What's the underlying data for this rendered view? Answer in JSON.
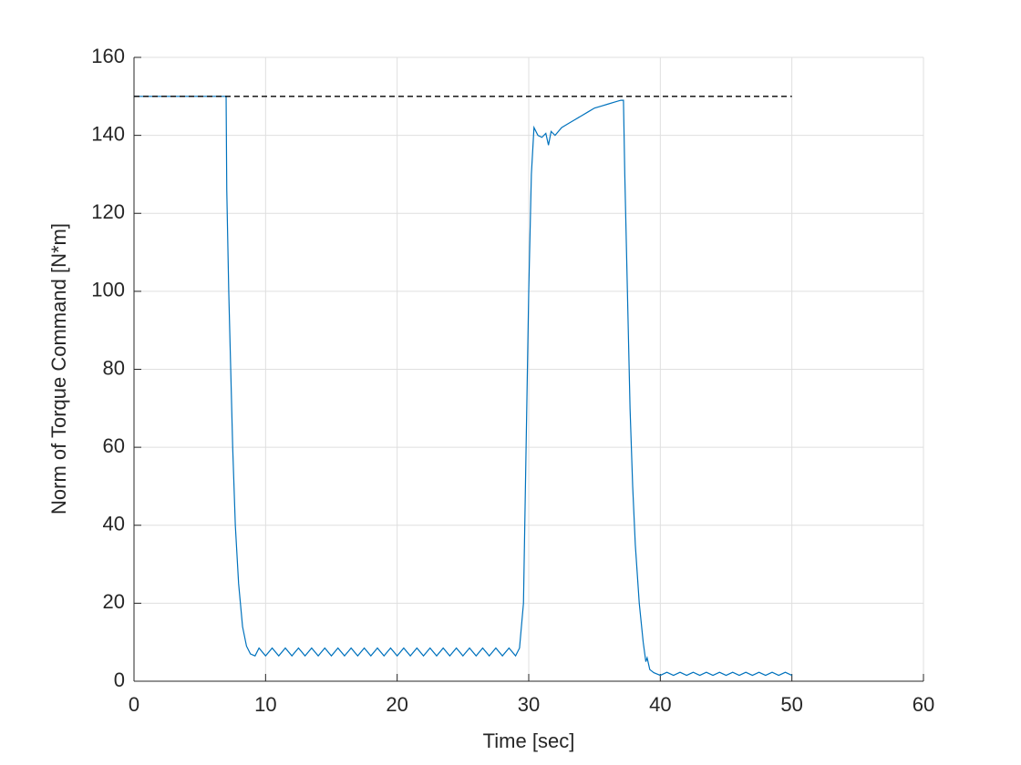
{
  "chart_data": {
    "type": "line",
    "xlabel": "Time [sec]",
    "ylabel": "Norm of Torque Command [N*m]",
    "xlim": [
      0,
      60
    ],
    "ylim": [
      0,
      160
    ],
    "xticks": [
      0,
      10,
      20,
      30,
      40,
      50,
      60
    ],
    "yticks": [
      0,
      20,
      40,
      60,
      80,
      100,
      120,
      140,
      160
    ],
    "grid": true,
    "series": [
      {
        "color": "#0072bd",
        "dash": false,
        "x": [
          0,
          7,
          7.05,
          7.2,
          7.35,
          7.5,
          7.7,
          7.95,
          8.25,
          8.55,
          8.85,
          9.2,
          9.5,
          10,
          10.5,
          11,
          11.5,
          12,
          12.5,
          13,
          13.5,
          14,
          14.5,
          15,
          15.5,
          16,
          16.5,
          17,
          17.5,
          18,
          18.5,
          19,
          19.5,
          20,
          20.5,
          21,
          21.5,
          22,
          22.5,
          23,
          23.5,
          24,
          24.5,
          25,
          25.5,
          26,
          26.5,
          27,
          27.5,
          28,
          28.5,
          29,
          29.3,
          29.6,
          29.8,
          30,
          30.2,
          30.4,
          30.7,
          31,
          31.3,
          31.5,
          31.7,
          32,
          32.5,
          33,
          33.5,
          34,
          34.5,
          35,
          35.5,
          36,
          36.5,
          37,
          37.2,
          37.3,
          37.5,
          37.7,
          37.9,
          38.1,
          38.4,
          38.7,
          38.9,
          39,
          39.2,
          39.5,
          40,
          40.5,
          41,
          41.5,
          42,
          42.5,
          43,
          43.5,
          44,
          44.5,
          45,
          45.5,
          46,
          46.5,
          47,
          47.5,
          48,
          48.5,
          49,
          49.5,
          50
        ],
        "values": [
          150,
          150,
          126,
          100,
          80,
          60,
          40,
          25,
          14,
          9,
          7,
          6.5,
          8.5,
          6.5,
          8.5,
          6.5,
          8.5,
          6.5,
          8.5,
          6.5,
          8.5,
          6.5,
          8.5,
          6.5,
          8.5,
          6.5,
          8.5,
          6.5,
          8.5,
          6.5,
          8.5,
          6.5,
          8.5,
          6.5,
          8.5,
          6.5,
          8.5,
          6.5,
          8.5,
          6.5,
          8.5,
          6.5,
          8.5,
          6.5,
          8.5,
          6.5,
          8.5,
          6.5,
          8.5,
          6.5,
          8.5,
          6.5,
          8.5,
          20,
          60,
          100,
          130,
          142,
          140,
          139.5,
          140.5,
          137.5,
          141,
          140,
          142,
          143,
          144,
          145,
          146,
          147,
          147.5,
          148,
          148.5,
          149,
          149,
          130,
          100,
          70,
          50,
          35,
          20,
          10,
          5,
          6,
          3,
          2.2,
          1.5,
          2.3,
          1.5,
          2.3,
          1.5,
          2.3,
          1.5,
          2.3,
          1.5,
          2.3,
          1.5,
          2.3,
          1.5,
          2.3,
          1.5,
          2.3,
          1.5,
          2.3,
          1.5,
          2.3,
          1.5
        ]
      },
      {
        "color": "#000000",
        "dash": true,
        "x": [
          0,
          50
        ],
        "values": [
          150,
          150
        ]
      }
    ]
  }
}
